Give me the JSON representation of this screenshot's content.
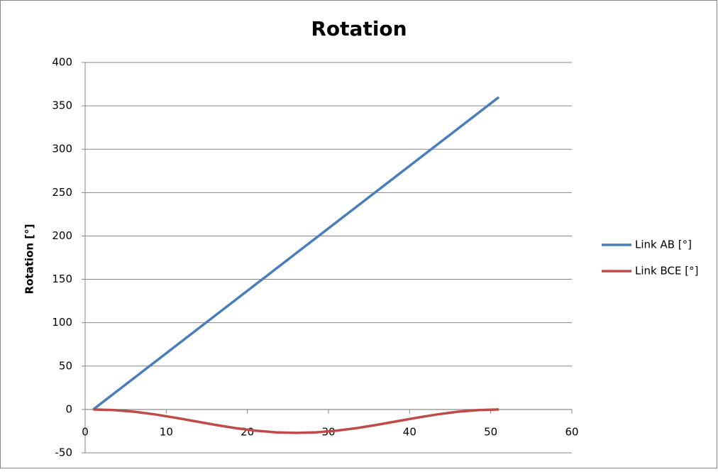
{
  "chart_data": {
    "type": "line",
    "title": "Rotation",
    "y_label": "Rotation [°]",
    "x": [
      1,
      3.5,
      6,
      8.5,
      11,
      13.5,
      16,
      18.5,
      21,
      23.5,
      26,
      28.5,
      31,
      33.5,
      36,
      38.5,
      41,
      43.5,
      46,
      48.5,
      51
    ],
    "series": [
      {
        "name": "Link AB [°]",
        "color": "#4a7ebb",
        "values": [
          0,
          18,
          36,
          54,
          72,
          90,
          108,
          126,
          144,
          162,
          180,
          198,
          216,
          234,
          252,
          270,
          288,
          306,
          324,
          342,
          360
        ]
      },
      {
        "name": "Link BCE [°]",
        "color": "#be4b48",
        "values": [
          0,
          -0.66,
          -2.58,
          -5.56,
          -9.33,
          -13.5,
          -17.67,
          -21.44,
          -24.42,
          -26.34,
          -27,
          -26.34,
          -24.42,
          -21.44,
          -17.67,
          -13.5,
          -9.33,
          -5.56,
          -2.58,
          -0.66,
          0
        ]
      }
    ],
    "xlim": [
      0,
      60
    ],
    "xticks": [
      0,
      10,
      20,
      30,
      40,
      50,
      60
    ],
    "ylim": [
      -50,
      400
    ],
    "yticks": [
      -50,
      0,
      50,
      100,
      150,
      200,
      250,
      300,
      350,
      400
    ],
    "grid": true,
    "legend": "right"
  }
}
